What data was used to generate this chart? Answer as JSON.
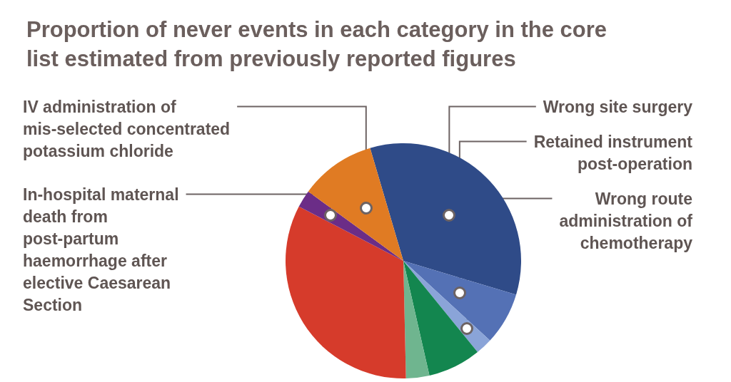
{
  "chart_data": {
    "type": "pie",
    "title": "Proportion of never events in each category in the core list estimated from previously reported figures",
    "categories": [
      "Wrong site surgery",
      "Retained instrument post-operation",
      "Wrong route administration of chemotherapy",
      null,
      null,
      null,
      "In-hospital maternal death from post-partum haemorrhage after elective Caesarean Section",
      "IV administration of mis-selected concentrated potassium chloride"
    ],
    "values": [
      34.2,
      7.2,
      2.3,
      7.3,
      3.2,
      33.0,
      2.4,
      10.4
    ],
    "colors": [
      "#2f4b88",
      "#5471b5",
      "#8aa4d8",
      "#13864f",
      "#6fb58f",
      "#d63b2b",
      "#6b2d87",
      "#e07b23"
    ]
  }
}
